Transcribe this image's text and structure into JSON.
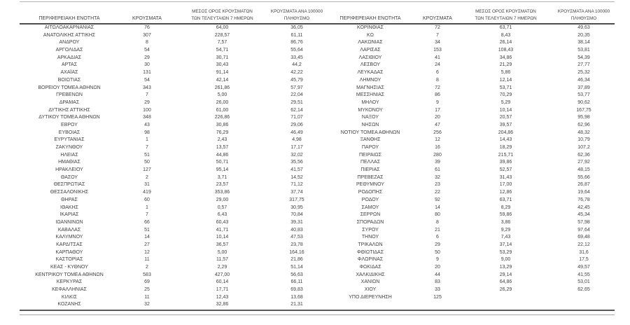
{
  "table": {
    "headers": {
      "region": "ΠΕΡΙΦΕΡΕΙΑΚΗ ΕΝΟΤΗΤΑ",
      "cases": "ΚΡΟΥΣΜΑΤΑ",
      "avg7_line1": "ΜΕΣΟΣ ΟΡΟΣ ΚΡΟΥΣΜΑΤΩΝ",
      "avg7_line2": "ΤΩΝ ΤΕΛΕΥΤΑΙΩΝ 7 ΗΜΕΡΩΝ",
      "per100k_line1": "ΚΡΟΥΣΜΑΤΑ ΑΝΑ 100000",
      "per100k_line2": "ΠΛΗΘΥΣΜΟ"
    },
    "left_rows": [
      [
        "ΑΙΤΩΛΟΑΚΑΡΝΑΝΙΑΣ",
        "76",
        "64,00",
        "36,05"
      ],
      [
        "ΑΝΑΤΟΛΙΚΗΣ ΑΤΤΙΚΗΣ",
        "307",
        "228,57",
        "61,11"
      ],
      [
        "ΑΝΔΡΟΥ",
        "8",
        "7,57",
        "86,76"
      ],
      [
        "ΑΡΓΟΛΙΔΑΣ",
        "54",
        "54,71",
        "55,64"
      ],
      [
        "ΑΡΚΑΔΙΑΣ",
        "29",
        "30,71",
        "33,45"
      ],
      [
        "ΑΡΤΑΣ",
        "30",
        "30,43",
        "44,2"
      ],
      [
        "ΑΧΑΪΑΣ",
        "131",
        "91,14",
        "42,22"
      ],
      [
        "ΒΟΙΩΤΙΑΣ",
        "54",
        "42,14",
        "45,79"
      ],
      [
        "ΒΟΡΕΙΟΥ ΤΟΜΕΑ ΑΘΗΝΩΝ",
        "343",
        "261,86",
        "57,97"
      ],
      [
        "ΓΡΕΒΕΝΩΝ",
        "7",
        "5,00",
        "22,04"
      ],
      [
        "ΔΡΑΜΑΣ",
        "29",
        "26,00",
        "29,51"
      ],
      [
        "ΔΥΤΙΚΗΣ ΑΤΤΙΚΗΣ",
        "100",
        "61,00",
        "62,14"
      ],
      [
        "ΔΥΤΙΚΟΥ ΤΟΜΕΑ ΑΘΗΝΩΝ",
        "348",
        "226,86",
        "71,07"
      ],
      [
        "ΕΒΡΟΥ",
        "43",
        "30,86",
        "29,06"
      ],
      [
        "ΕΥΒΟΙΑΣ",
        "98",
        "76,29",
        "46,49"
      ],
      [
        "ΕΥΡΥΤΑΝΙΑΣ",
        "1",
        "2,43",
        "4,98"
      ],
      [
        "ΖΑΚΥΝΘΟΥ",
        "7",
        "13,57",
        "17,17"
      ],
      [
        "ΗΛΕΙΑΣ",
        "51",
        "44,86",
        "32,02"
      ],
      [
        "ΗΜΑΘΙΑΣ",
        "50",
        "50,71",
        "35,56"
      ],
      [
        "ΗΡΑΚΛΕΙΟΥ",
        "127",
        "95,14",
        "41,57"
      ],
      [
        "ΘΑΣΟΥ",
        "2",
        "3,71",
        "14,52"
      ],
      [
        "ΘΕΣΠΡΩΤΙΑΣ",
        "31",
        "23,57",
        "71,12"
      ],
      [
        "ΘΕΣΣΑΛΟΝΙΚΗΣ",
        "419",
        "353,86",
        "37,74"
      ],
      [
        "ΘΗΡΑΣ",
        "60",
        "29,00",
        "317,75"
      ],
      [
        "ΙΘΑΚΗΣ",
        "1",
        "0,57",
        "30,95"
      ],
      [
        "ΙΚΑΡΙΑΣ",
        "7",
        "6,43",
        "70,84"
      ],
      [
        "ΙΩΑΝΝΙΝΩΝ",
        "66",
        "60,43",
        "39,31"
      ],
      [
        "ΚΑΒΑΛΑΣ",
        "51",
        "41,71",
        "40,83"
      ],
      [
        "ΚΑΛΥΜΝΟΥ",
        "14",
        "10,14",
        "47,53"
      ],
      [
        "ΚΑΡΔΙΤΣΑΣ",
        "27",
        "36,57",
        "23,78"
      ],
      [
        "ΚΑΡΠΑΘΟΥ",
        "12",
        "5,00",
        "164,16"
      ],
      [
        "ΚΑΣΤΟΡΙΑΣ",
        "11",
        "11,57",
        "21,86"
      ],
      [
        "ΚΕΑΣ - ΚΥΘΝΟΥ",
        "2",
        "2,29",
        "51,14"
      ],
      [
        "ΚΕΝΤΡΙΚΟΥ ΤΟΜΕΑ ΑΘΗΝΩΝ",
        "583",
        "427,00",
        "56,63"
      ],
      [
        "ΚΕΡΚΥΡΑΣ",
        "69",
        "60,14",
        "66,11"
      ],
      [
        "ΚΕΦΑΛΛΗΝΙΑΣ",
        "25",
        "17,71",
        "69,83"
      ],
      [
        "ΚΙΛΚΙΣ",
        "11",
        "12,43",
        "13,68"
      ],
      [
        "ΚΟΖΑΝΗΣ",
        "32",
        "32,86",
        "21,31"
      ]
    ],
    "right_rows": [
      [
        "ΚΟΡΙΝΘΙΑΣ",
        "72",
        "63,71",
        "49,63"
      ],
      [
        "ΚΩ",
        "7",
        "8,43",
        "20,35"
      ],
      [
        "ΛΑΚΩΝΙΑΣ",
        "34",
        "26,14",
        "38,14"
      ],
      [
        "ΛΑΡΙΣΑΣ",
        "153",
        "108,43",
        "53,81"
      ],
      [
        "ΛΑΣΙΘΙΟΥ",
        "41",
        "34,86",
        "54,39"
      ],
      [
        "ΛΕΣΒΟΥ",
        "24",
        "21,29",
        "27,77"
      ],
      [
        "ΛΕΥΚΑΔΑΣ",
        "6",
        "5,86",
        "25,32"
      ],
      [
        "ΛΗΜΝΟΥ",
        "8",
        "12,14",
        "46,34"
      ],
      [
        "ΜΑΓΝΗΣΙΑΣ",
        "72",
        "53,71",
        "37,89"
      ],
      [
        "ΜΕΣΣΗΝΙΑΣ",
        "86",
        "70,29",
        "53,77"
      ],
      [
        "ΜΗΛΟΥ",
        "9",
        "5,29",
        "90,62"
      ],
      [
        "ΜΥΚΟΝΟΥ",
        "17",
        "10,14",
        "167,75"
      ],
      [
        "ΝΑΞΟΥ",
        "20",
        "20,57",
        "95,98"
      ],
      [
        "ΝΗΣΩΝ",
        "47",
        "39,57",
        "62,96"
      ],
      [
        "ΝΟΤΙΟΥ ΤΟΜΕΑ ΑΘΗΝΩΝ",
        "256",
        "204,86",
        "48,32"
      ],
      [
        "ΞΑΝΘΗΣ",
        "12",
        "14,43",
        "10,79"
      ],
      [
        "ΠΑΡΟΥ",
        "16",
        "18,29",
        "107,2"
      ],
      [
        "ΠΕΙΡΑΙΩΣ",
        "280",
        "215,71",
        "62,36"
      ],
      [
        "ΠΕΛΛΑΣ",
        "39",
        "39,86",
        "27,92"
      ],
      [
        "ΠΙΕΡΙΑΣ",
        "61",
        "52,57",
        "48,15"
      ],
      [
        "ΠΡΕΒΕΖΑΣ",
        "32",
        "31,43",
        "55,66"
      ],
      [
        "ΡΕΘΥΜΝΟΥ",
        "23",
        "17,00",
        "26,87"
      ],
      [
        "ΡΟΔΟΠΗΣ",
        "22",
        "12,86",
        "19,64"
      ],
      [
        "ΡΟΔΟΥ",
        "92",
        "63,71",
        "76,78"
      ],
      [
        "ΣΑΜΟΥ",
        "14",
        "8,29",
        "42,45"
      ],
      [
        "ΣΕΡΡΩΝ",
        "80",
        "59,86",
        "45,34"
      ],
      [
        "ΣΠΟΡΑΔΩΝ",
        "8",
        "3,86",
        "57,98"
      ],
      [
        "ΣΥΡΟΥ",
        "21",
        "9,29",
        "97,64"
      ],
      [
        "ΤΗΝΟΥ",
        "6",
        "7,43",
        "69,48"
      ],
      [
        "ΤΡΙΚΑΛΩΝ",
        "29",
        "37,14",
        "22,12"
      ],
      [
        "ΦΘΙΩΤΙΔΑΣ",
        "50",
        "53,29",
        "31,6"
      ],
      [
        "ΦΛΩΡΙΝΑΣ",
        "9",
        "9,00",
        "17,5"
      ],
      [
        "ΦΩΚΙΔΑΣ",
        "20",
        "13,29",
        "49,57"
      ],
      [
        "ΧΑΛΚΙΔΙΚΗΣ",
        "44",
        "29,14",
        "41,55"
      ],
      [
        "ΧΑΝΙΩΝ",
        "83",
        "64,86",
        "53,01"
      ],
      [
        "ΧΙΟΥ",
        "33",
        "26,29",
        "62,65"
      ],
      [
        "ΥΠΟ ΔΙΕΡΕΥΝΗΣΗ",
        "125",
        "",
        ""
      ]
    ]
  },
  "colors": {
    "text": "#3f3f3f",
    "header_rule": "#4d4d4d",
    "top_rule": "#b3b3b3",
    "bottom_rule_dark": "#595959",
    "bottom_rule_light": "#a6a6a6"
  }
}
